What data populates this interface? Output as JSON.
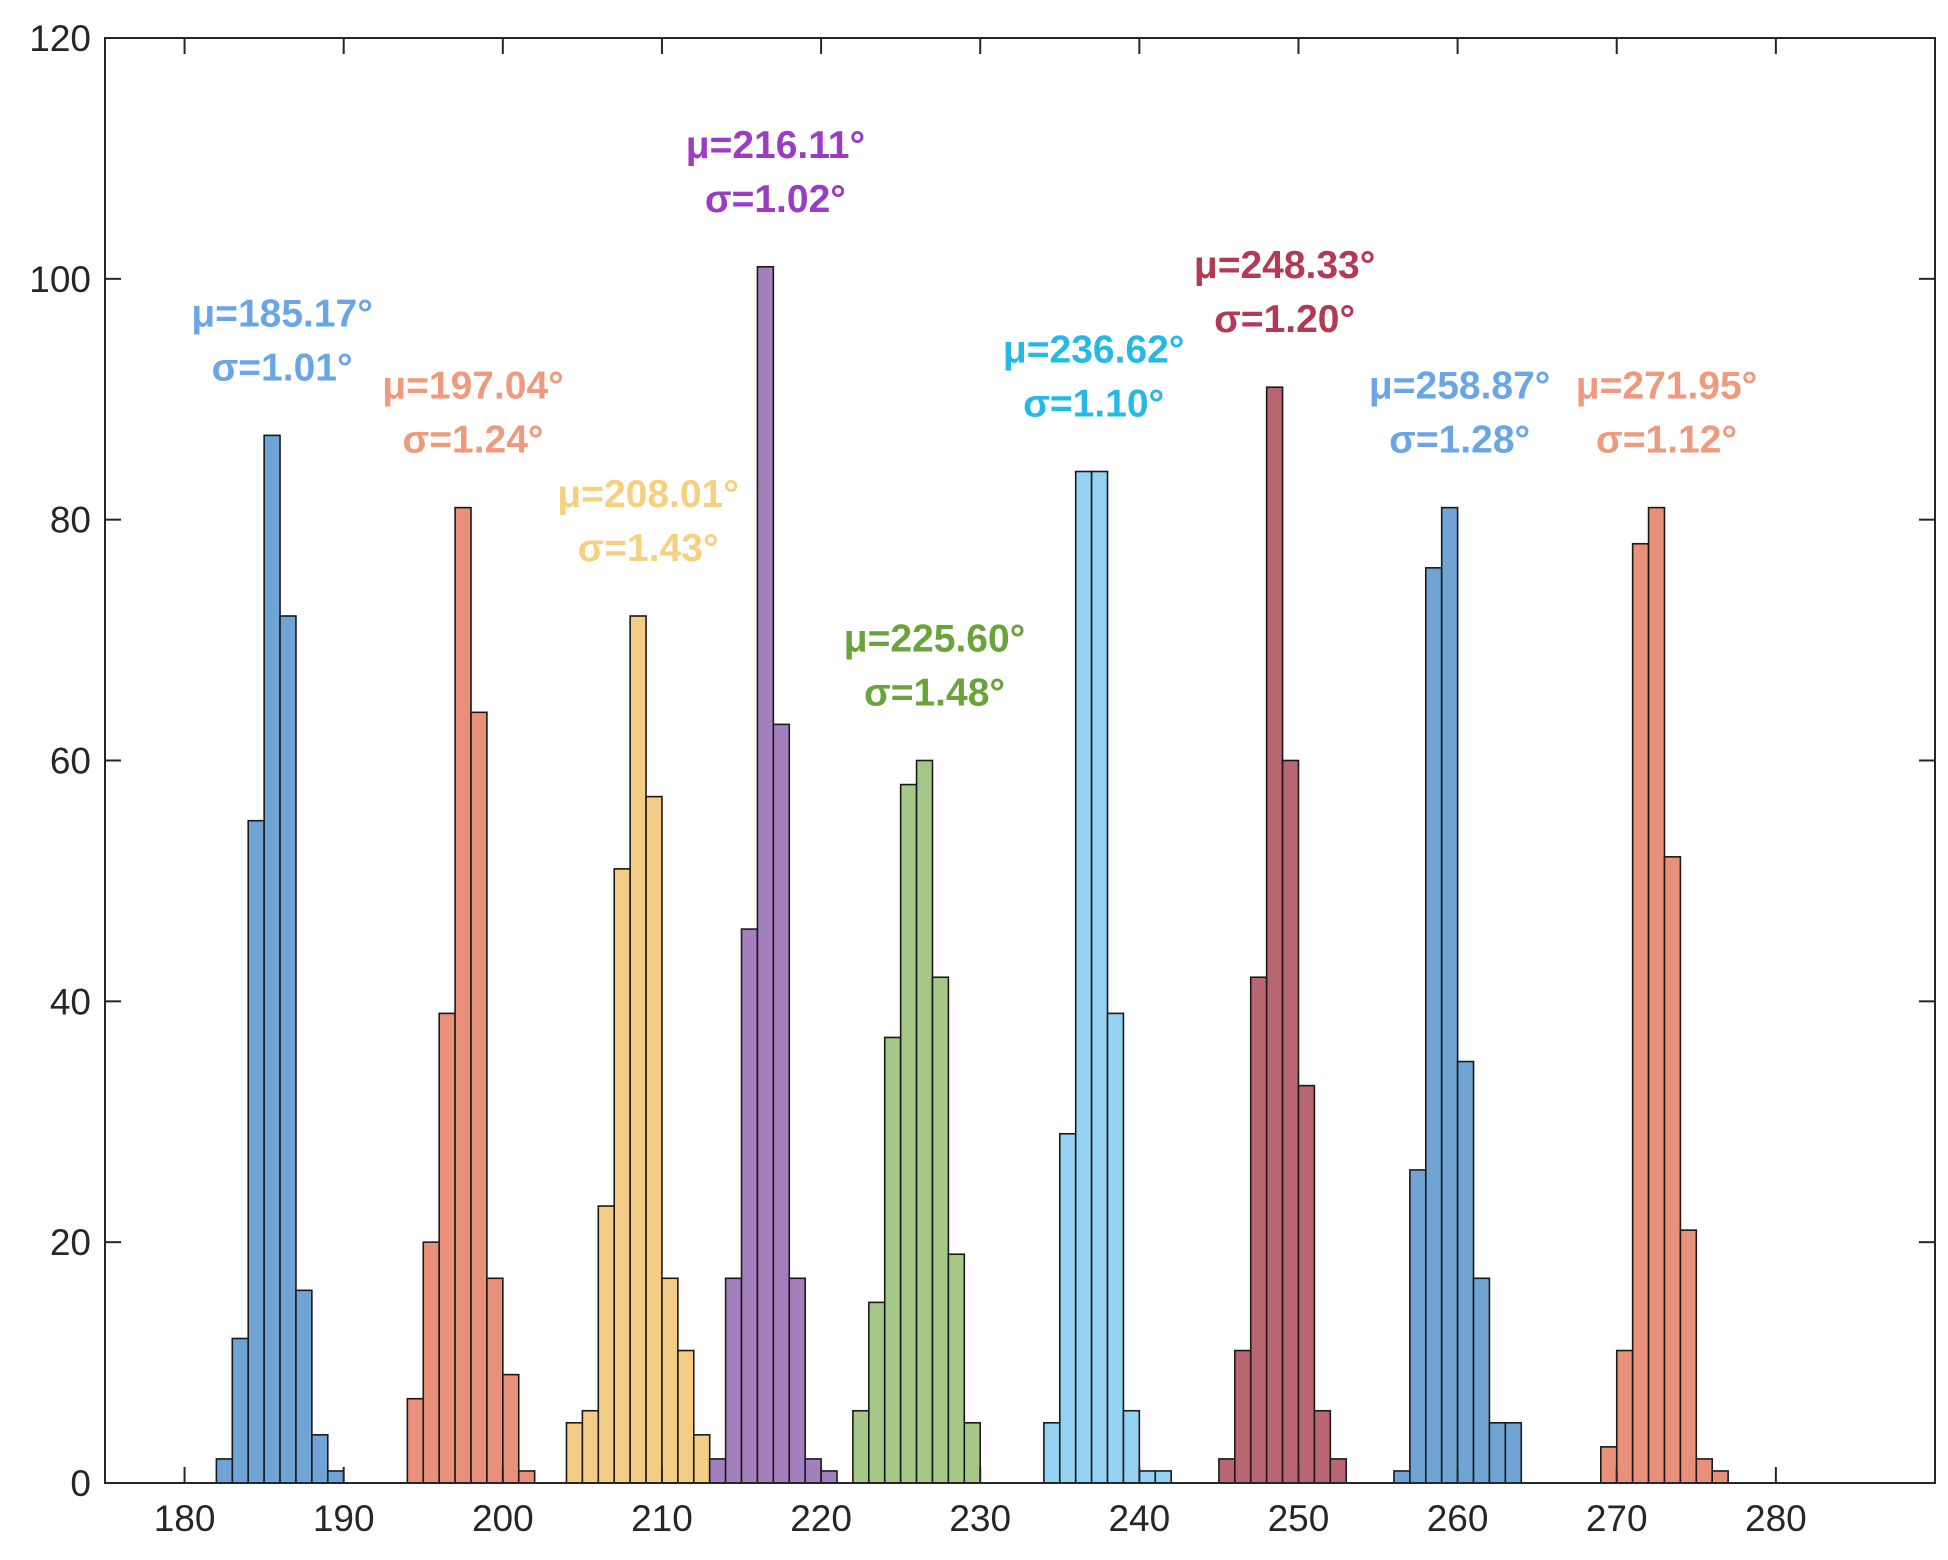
{
  "chart_data": {
    "type": "histogram",
    "title": "",
    "xlabel": "",
    "ylabel": "",
    "xlim": [
      175,
      290
    ],
    "ylim": [
      0,
      120
    ],
    "bin_width": 1,
    "grid": false,
    "x_ticks": [
      180,
      190,
      200,
      210,
      220,
      230,
      240,
      250,
      260,
      270,
      280
    ],
    "y_ticks": [
      0,
      20,
      40,
      60,
      80,
      100,
      120
    ],
    "series": [
      {
        "name": "s1",
        "color": "#6fa4d4",
        "bin_start": 182,
        "counts": [
          2,
          12,
          55,
          87,
          72,
          16,
          4,
          1
        ],
        "mean_label": "μ=185.17°",
        "sd_label": "σ=1.01°",
        "label_color": "#6aa6e6"
      },
      {
        "name": "s2",
        "color": "#e9907a",
        "bin_start": 194,
        "counts": [
          7,
          20,
          39,
          81,
          64,
          17,
          9,
          1
        ],
        "mean_label": "μ=197.04°",
        "sd_label": "σ=1.24°",
        "label_color": "#ef9a7c"
      },
      {
        "name": "s3",
        "color": "#f3cd86",
        "bin_start": 204,
        "counts": [
          5,
          6,
          23,
          51,
          72,
          57,
          17,
          11,
          4
        ],
        "mean_label": "μ=208.01°",
        "sd_label": "σ=1.43°",
        "label_color": "#f6d07e"
      },
      {
        "name": "s4",
        "color": "#a47fbe",
        "bin_start": 213,
        "counts": [
          2,
          17,
          46,
          101,
          63,
          17,
          2,
          1
        ],
        "mean_label": "μ=216.11°",
        "sd_label": "σ=1.02°",
        "label_color": "#9a3cc4"
      },
      {
        "name": "s5",
        "color": "#a5c788",
        "bin_start": 222,
        "counts": [
          6,
          15,
          37,
          58,
          60,
          42,
          19,
          5
        ],
        "mean_label": "μ=225.60°",
        "sd_label": "σ=1.48°",
        "label_color": "#6aa33a"
      },
      {
        "name": "s6",
        "color": "#95d1f2",
        "bin_start": 234,
        "counts": [
          5,
          29,
          84,
          84,
          39,
          6,
          1,
          1
        ],
        "mean_label": "μ=236.62°",
        "sd_label": "σ=1.10°",
        "label_color": "#25b9e6"
      },
      {
        "name": "s7",
        "color": "#b96673",
        "bin_start": 245,
        "counts": [
          2,
          11,
          42,
          91,
          60,
          33,
          6,
          2
        ],
        "mean_label": "μ=248.33°",
        "sd_label": "σ=1.20°",
        "label_color": "#b23a55"
      },
      {
        "name": "s8",
        "color": "#6fa4d4",
        "bin_start": 256,
        "counts": [
          1,
          26,
          76,
          81,
          35,
          17,
          5,
          5
        ],
        "mean_label": "μ=258.87°",
        "sd_label": "σ=1.28°",
        "label_color": "#6aa6e6"
      },
      {
        "name": "s9",
        "color": "#e9907a",
        "bin_start": 269,
        "counts": [
          3,
          11,
          78,
          81,
          52,
          21,
          2,
          1
        ],
        "mean_label": "μ=271.95°",
        "sd_label": "σ=1.12°",
        "label_color": "#ef9a7c"
      }
    ]
  }
}
